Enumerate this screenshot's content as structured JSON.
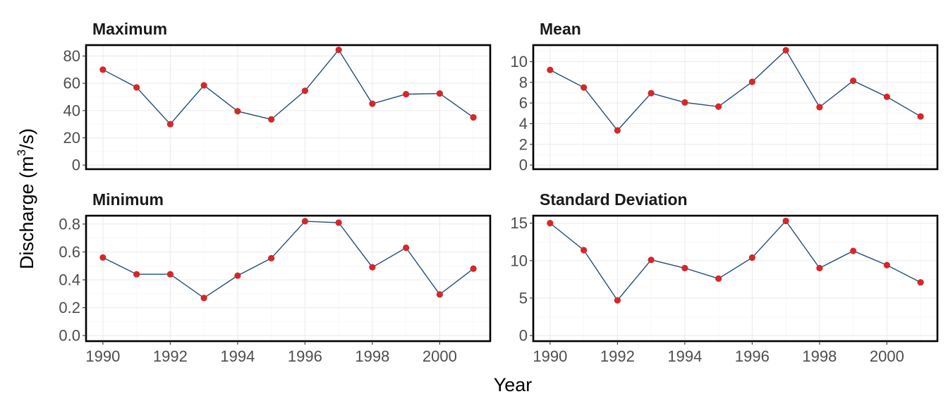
{
  "chart_data": {
    "type": "line",
    "layout": "2x2 facets",
    "xlabel": "Year",
    "ylabel": {
      "prefix": "Discharge (m",
      "superscript": "3",
      "suffix": "/s)"
    },
    "x": [
      1990,
      1991,
      1992,
      1993,
      1994,
      1995,
      1996,
      1997,
      1998,
      1999,
      2000,
      2001
    ],
    "xlim": [
      1989.5,
      2001.5
    ],
    "xticks": [
      1990,
      1992,
      1994,
      1996,
      1998,
      2000
    ],
    "grid": true,
    "colors": {
      "line": "#1f4e79",
      "point": "#d62728"
    },
    "panels": [
      {
        "title": "Maximum",
        "values": [
          70,
          57,
          30,
          58.5,
          39.5,
          33.5,
          54.5,
          84.5,
          45,
          52,
          52.5,
          35
        ],
        "ylim": [
          -3,
          88
        ],
        "yticks": [
          0,
          20,
          40,
          60,
          80
        ],
        "ytick_labels": [
          "0",
          "20",
          "40",
          "60",
          "80"
        ],
        "ygrid_step": 10
      },
      {
        "title": "Mean",
        "values": [
          9.2,
          7.5,
          3.35,
          6.95,
          6.05,
          5.65,
          8.05,
          11.1,
          5.6,
          8.15,
          6.6,
          4.7
        ],
        "ylim": [
          -0.4,
          11.6
        ],
        "yticks": [
          0,
          2,
          4,
          6,
          8,
          10
        ],
        "ytick_labels": [
          "0",
          "2",
          "4",
          "6",
          "8",
          "10"
        ],
        "ygrid_step": 1
      },
      {
        "title": "Minimum",
        "values": [
          0.56,
          0.44,
          0.44,
          0.27,
          0.43,
          0.555,
          0.82,
          0.81,
          0.49,
          0.63,
          0.295,
          0.48
        ],
        "ylim": [
          -0.04,
          0.86
        ],
        "yticks": [
          0,
          0.2,
          0.4,
          0.6,
          0.8
        ],
        "ytick_labels": [
          "0.0",
          "0.2",
          "0.4",
          "0.6",
          "0.8"
        ],
        "ygrid_step": 0.1
      },
      {
        "title": "Standard Deviation",
        "values": [
          15,
          11.4,
          4.7,
          10.1,
          9,
          7.6,
          10.4,
          15.3,
          9,
          11.3,
          9.4,
          7.1
        ],
        "ylim": [
          -0.75,
          16
        ],
        "yticks": [
          0,
          5,
          10,
          15
        ],
        "ytick_labels": [
          "0",
          "5",
          "10",
          "15"
        ],
        "ygrid_step": 2.5
      }
    ]
  }
}
